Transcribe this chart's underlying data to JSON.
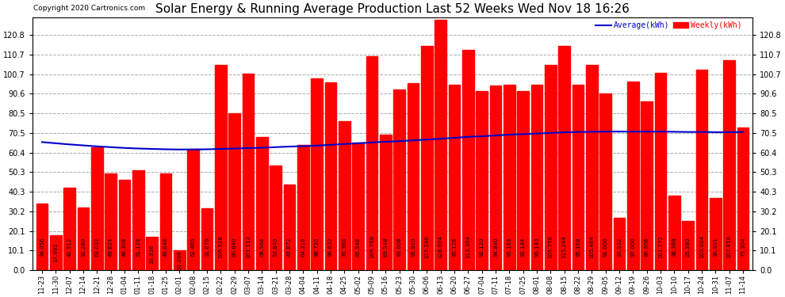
{
  "title": "Solar Energy & Running Average Production Last 52 Weeks Wed Nov 18 16:26",
  "copyright": "Copyright 2020 Cartronics.com",
  "legend_average": "Average(kWh)",
  "legend_weekly": "Weekly(kWh)",
  "bar_color": "#ff0000",
  "avg_line_color": "#0000cc",
  "background_color": "#ffffff",
  "grid_color": "#aaaaaa",
  "ylim": [
    0,
    130
  ],
  "yticks": [
    0.0,
    10.1,
    20.1,
    30.2,
    40.3,
    50.3,
    60.4,
    70.5,
    80.5,
    90.6,
    100.7,
    110.7,
    120.8
  ],
  "categories": [
    "11-23",
    "11-30",
    "12-07",
    "12-14",
    "12-21",
    "12-28",
    "01-04",
    "01-11",
    "01-18",
    "01-25",
    "02-01",
    "02-08",
    "02-15",
    "02-22",
    "02-29",
    "03-07",
    "03-14",
    "03-21",
    "03-28",
    "04-04",
    "04-11",
    "04-18",
    "04-25",
    "05-02",
    "05-09",
    "05-16",
    "05-23",
    "05-30",
    "06-06",
    "06-13",
    "06-20",
    "06-27",
    "07-04",
    "07-11",
    "07-18",
    "07-25",
    "08-01",
    "08-08",
    "08-15",
    "08-22",
    "08-29",
    "09-05",
    "09-12",
    "09-19",
    "09-26",
    "10-03",
    "10-10",
    "10-17",
    "10-24",
    "10-31",
    "11-07",
    "11-14"
  ],
  "weekly_values": [
    34.056,
    17.992,
    42.512,
    32.28,
    63.032,
    49.624,
    46.308,
    51.128,
    16.936,
    49.648,
    10.096,
    62.46,
    31.676,
    105.528,
    80.64,
    101.112,
    68.568,
    53.84,
    43.872,
    64.316,
    98.72,
    96.632,
    76.36,
    65.548,
    109.788,
    69.548,
    93.008,
    95.92,
    115.24,
    128.604,
    95.128,
    113.304,
    92.12,
    94.84,
    95.168,
    92.144,
    95.14,
    105.356,
    115.244,
    95.168,
    105.464,
    91.0,
    26.932,
    97.0,
    86.608,
    101.272,
    38.388,
    25.38,
    103.004,
    36.991,
    107.816,
    73.304
  ],
  "avg_values": [
    65.8,
    65.2,
    64.6,
    64.1,
    63.6,
    63.2,
    62.8,
    62.5,
    62.3,
    62.1,
    62.0,
    62.0,
    62.1,
    62.3,
    62.5,
    62.7,
    62.9,
    63.2,
    63.5,
    63.7,
    64.0,
    64.4,
    64.8,
    65.2,
    65.6,
    66.0,
    66.3,
    66.7,
    67.1,
    67.5,
    68.0,
    68.5,
    68.8,
    69.2,
    69.6,
    69.9,
    70.2,
    70.5,
    70.8,
    71.0,
    71.1,
    71.2,
    71.2,
    71.2,
    71.2,
    71.2,
    71.1,
    71.0,
    71.0,
    70.9,
    70.9,
    71.0
  ],
  "title_fontsize": 11,
  "tick_fontsize": 7,
  "xlabel_fontsize": 6,
  "bar_label_fontsize": 5
}
